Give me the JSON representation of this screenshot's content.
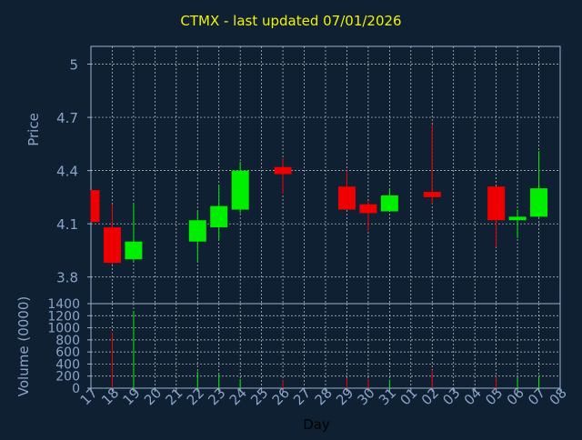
{
  "chart_data": [
    {
      "type": "candlestick",
      "title": "CTMX - last updated 07/01/2026",
      "ylabel": "Price",
      "ylim": [
        3.65,
        5.1
      ],
      "yticks": [
        "5",
        "4.7",
        "4.4",
        "4.1",
        "3.8"
      ],
      "ytick_values": [
        5.0,
        4.7,
        4.4,
        4.1,
        3.8
      ],
      "grid": true,
      "x": [
        "17",
        "18",
        "19",
        "20",
        "21",
        "22",
        "23",
        "24",
        "25",
        "26",
        "27",
        "28",
        "29",
        "30",
        "31",
        "01",
        "02",
        "03",
        "04",
        "05",
        "06",
        "07",
        "08"
      ],
      "candles": [
        {
          "day": "17",
          "open": 4.29,
          "high": 4.29,
          "low": 4.11,
          "close": 4.11
        },
        {
          "day": "18",
          "open": 4.08,
          "high": 4.21,
          "low": 3.87,
          "close": 3.88
        },
        {
          "day": "19",
          "open": 3.9,
          "high": 4.21,
          "low": 3.89,
          "close": 4.0
        },
        {
          "day": "22",
          "open": 4.0,
          "high": 4.17,
          "low": 3.89,
          "close": 4.12
        },
        {
          "day": "23",
          "open": 4.08,
          "high": 4.32,
          "low": 4.01,
          "close": 4.2
        },
        {
          "day": "24",
          "open": 4.18,
          "high": 4.45,
          "low": 4.16,
          "close": 4.4
        },
        {
          "day": "26",
          "open": 4.42,
          "high": 4.47,
          "low": 4.27,
          "close": 4.38
        },
        {
          "day": "29",
          "open": 4.31,
          "high": 4.4,
          "low": 4.18,
          "close": 4.18
        },
        {
          "day": "30",
          "open": 4.21,
          "high": 4.23,
          "low": 4.06,
          "close": 4.16
        },
        {
          "day": "31",
          "open": 4.17,
          "high": 4.3,
          "low": 4.17,
          "close": 4.26
        },
        {
          "day": "02",
          "open": 4.28,
          "high": 4.66,
          "low": 4.21,
          "close": 4.25
        },
        {
          "day": "05",
          "open": 4.31,
          "high": 4.31,
          "low": 3.97,
          "close": 4.12
        },
        {
          "day": "06",
          "open": 4.12,
          "high": 4.18,
          "low": 4.02,
          "close": 4.14
        },
        {
          "day": "07",
          "open": 4.14,
          "high": 4.51,
          "low": 4.13,
          "close": 4.3
        }
      ]
    },
    {
      "type": "bar",
      "ylabel": "Volume (0000)",
      "xlabel": "Day",
      "ylim": [
        0,
        1400
      ],
      "yticks": [
        "1400",
        "1200",
        "1000",
        "800",
        "600",
        "400",
        "200",
        "0"
      ],
      "ytick_values": [
        1400,
        1200,
        1000,
        800,
        600,
        400,
        200,
        0
      ],
      "grid": true,
      "x": [
        "17",
        "18",
        "19",
        "20",
        "21",
        "22",
        "23",
        "24",
        "25",
        "26",
        "27",
        "28",
        "29",
        "30",
        "31",
        "01",
        "02",
        "03",
        "04",
        "05",
        "06",
        "07",
        "08"
      ],
      "values": [
        {
          "day": "18",
          "value": 920,
          "direction": "down"
        },
        {
          "day": "19",
          "value": 1280,
          "direction": "up"
        },
        {
          "day": "22",
          "value": 280,
          "direction": "up"
        },
        {
          "day": "23",
          "value": 230,
          "direction": "up"
        },
        {
          "day": "24",
          "value": 150,
          "direction": "up"
        },
        {
          "day": "26",
          "value": 130,
          "direction": "down"
        },
        {
          "day": "29",
          "value": 170,
          "direction": "down"
        },
        {
          "day": "30",
          "value": 150,
          "direction": "down"
        },
        {
          "day": "31",
          "value": 140,
          "direction": "up"
        },
        {
          "day": "02",
          "value": 300,
          "direction": "down"
        },
        {
          "day": "05",
          "value": 190,
          "direction": "down"
        },
        {
          "day": "06",
          "value": 170,
          "direction": "up"
        },
        {
          "day": "07",
          "value": 200,
          "direction": "up"
        }
      ]
    }
  ],
  "colors": {
    "background": "#0f2033",
    "title": "#f2f200",
    "axis_text": "#8aa4c8",
    "up": "#00ee00",
    "down": "#ee0000",
    "grid": "#c8c8c8",
    "frame": "#9ab0cc"
  }
}
